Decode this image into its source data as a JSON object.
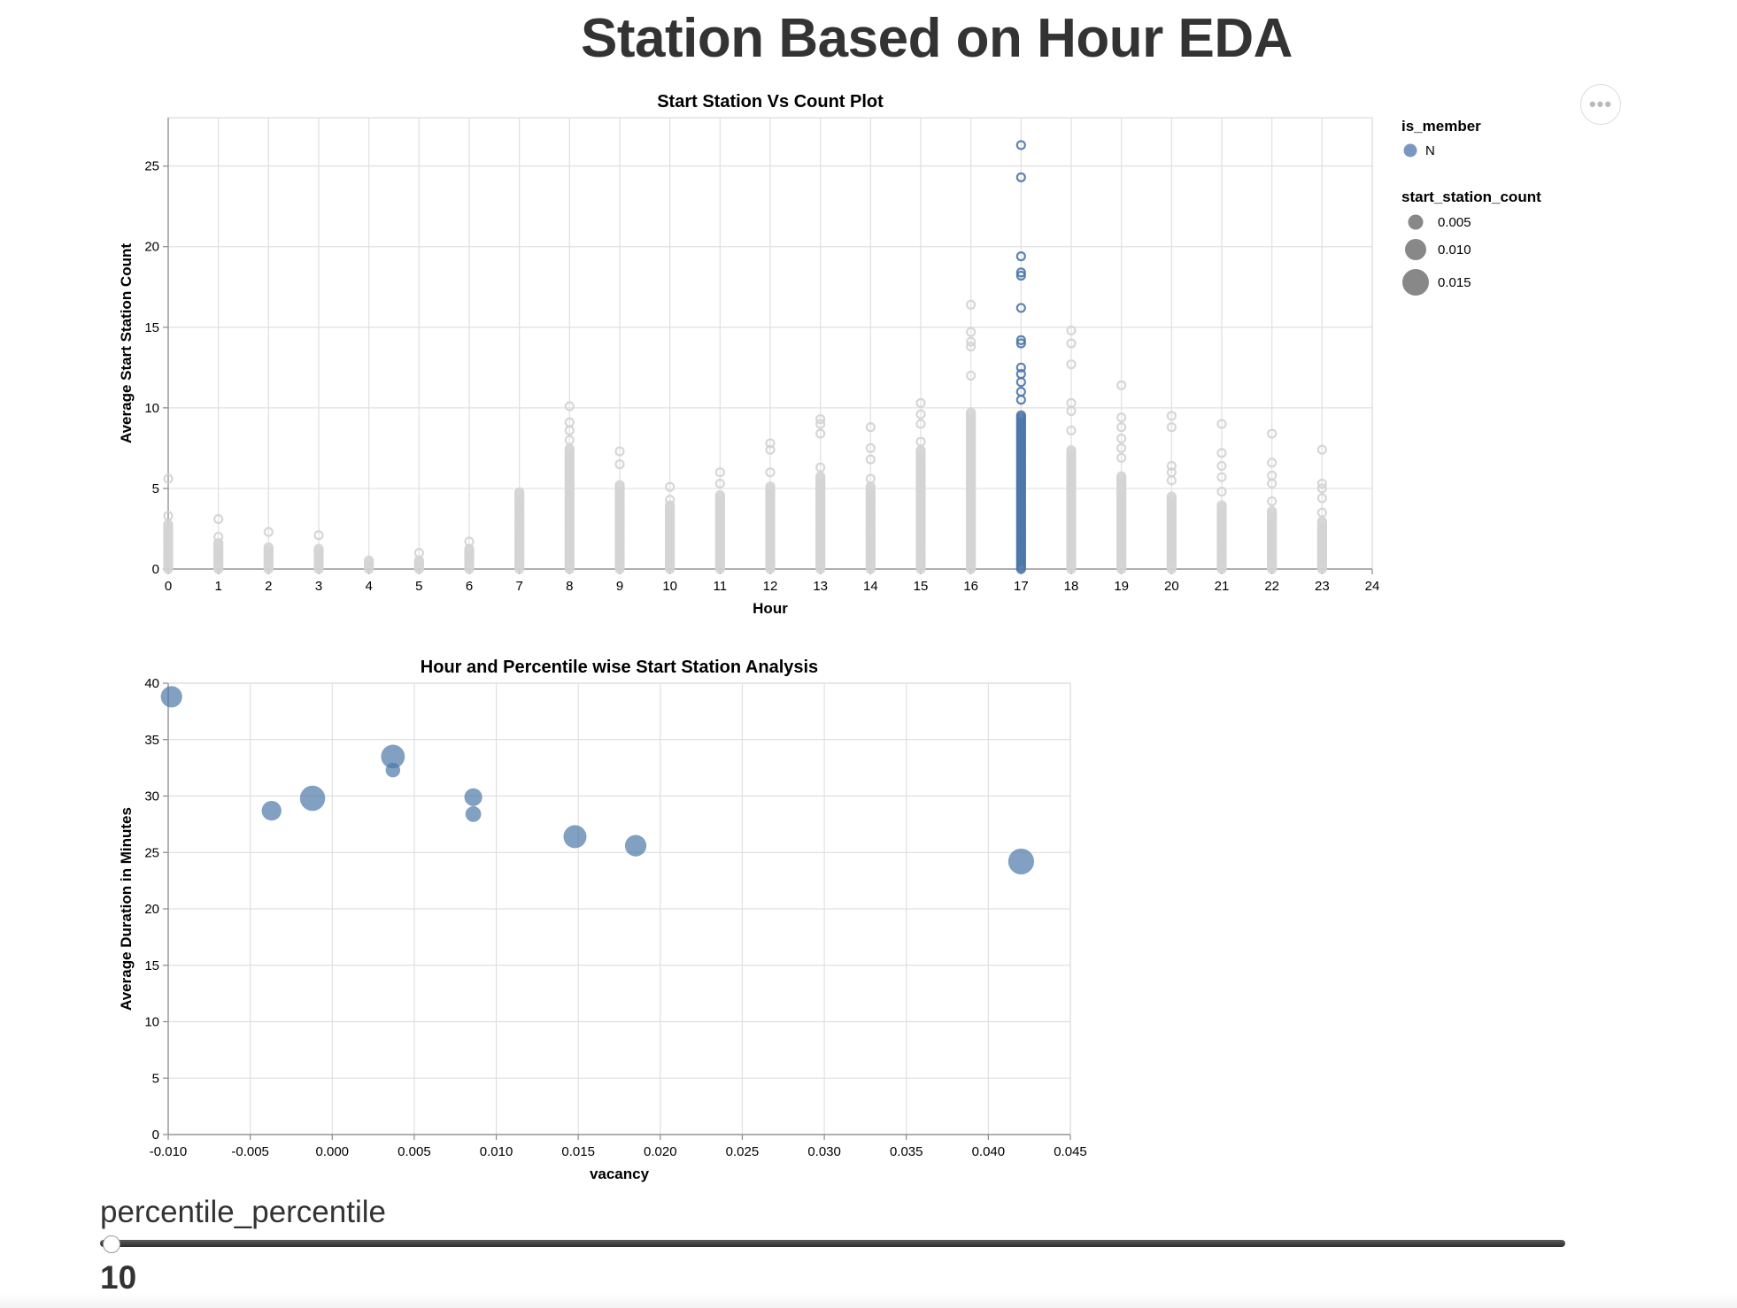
{
  "page": {
    "title": "Station Based on Hour EDA",
    "menu_icon": "ellipsis-icon",
    "menu_glyph": "•••"
  },
  "legend": {
    "color_title": "is_member",
    "color_entries": [
      {
        "label": "N",
        "color": "#7c97bf"
      }
    ],
    "size_title": "start_station_count",
    "size_entries": [
      {
        "label": "0.005",
        "value": 0.005
      },
      {
        "label": "0.010",
        "value": 0.01
      },
      {
        "label": "0.015",
        "value": 0.015
      }
    ]
  },
  "slider": {
    "name": "percentile_percentile",
    "value": "10",
    "position": 0
  },
  "chart_data": [
    {
      "type": "scatter",
      "title": "Start Station Vs Count Plot",
      "xlabel": "Hour",
      "ylabel": "Average Start Station Count",
      "xlim": [
        0,
        24
      ],
      "ylim": [
        0,
        28
      ],
      "x_ticks": [
        "0",
        "1",
        "2",
        "3",
        "4",
        "5",
        "6",
        "7",
        "8",
        "9",
        "10",
        "11",
        "12",
        "13",
        "14",
        "15",
        "16",
        "17",
        "18",
        "19",
        "20",
        "21",
        "22",
        "23",
        "24"
      ],
      "y_ticks": [
        "0",
        "5",
        "10",
        "15",
        "20",
        "25"
      ],
      "grid": true,
      "highlight_color": "#4c78a8",
      "muted_color": "#d3d3d3",
      "highlighted_hour": 17,
      "series": [
        {
          "hour": 0,
          "dense_max": 2.8,
          "outliers": [
            3.3,
            5.6
          ]
        },
        {
          "hour": 1,
          "dense_max": 1.7,
          "outliers": [
            2.0,
            3.1
          ]
        },
        {
          "hour": 2,
          "dense_max": 1.4,
          "outliers": [
            2.3
          ]
        },
        {
          "hour": 3,
          "dense_max": 1.3,
          "outliers": [
            2.1
          ]
        },
        {
          "hour": 4,
          "dense_max": 0.6,
          "outliers": []
        },
        {
          "hour": 5,
          "dense_max": 0.6,
          "outliers": [
            1.0
          ]
        },
        {
          "hour": 6,
          "dense_max": 1.3,
          "outliers": [
            1.7
          ]
        },
        {
          "hour": 7,
          "dense_max": 4.8,
          "outliers": []
        },
        {
          "hour": 8,
          "dense_max": 7.5,
          "outliers": [
            8.0,
            8.6,
            9.1,
            10.1
          ]
        },
        {
          "hour": 9,
          "dense_max": 5.3,
          "outliers": [
            6.5,
            7.3
          ]
        },
        {
          "hour": 10,
          "dense_max": 4.0,
          "outliers": [
            4.3,
            5.1
          ]
        },
        {
          "hour": 11,
          "dense_max": 4.6,
          "outliers": [
            5.3,
            6.0
          ]
        },
        {
          "hour": 12,
          "dense_max": 5.2,
          "outliers": [
            6.0,
            7.4,
            7.8
          ]
        },
        {
          "hour": 13,
          "dense_max": 5.8,
          "outliers": [
            6.3,
            8.4,
            9.0,
            9.3
          ]
        },
        {
          "hour": 14,
          "dense_max": 5.2,
          "outliers": [
            5.6,
            6.8,
            7.5,
            8.8
          ]
        },
        {
          "hour": 15,
          "dense_max": 7.4,
          "outliers": [
            7.9,
            9.0,
            9.6,
            10.3
          ]
        },
        {
          "hour": 16,
          "dense_max": 9.8,
          "outliers": [
            12.0,
            13.8,
            14.1,
            14.7,
            16.4
          ]
        },
        {
          "hour": 17,
          "dense_max": 9.6,
          "outliers": [
            10.5,
            11.0,
            11.6,
            12.1,
            12.5,
            14.0,
            14.2,
            16.2,
            18.2,
            18.4,
            19.4,
            24.3,
            26.3
          ]
        },
        {
          "hour": 18,
          "dense_max": 7.4,
          "outliers": [
            8.6,
            9.8,
            10.3,
            12.7,
            14.0,
            14.8
          ]
        },
        {
          "hour": 19,
          "dense_max": 5.8,
          "outliers": [
            6.9,
            7.5,
            8.1,
            8.8,
            9.4,
            11.4
          ]
        },
        {
          "hour": 20,
          "dense_max": 4.5,
          "outliers": [
            5.5,
            6.0,
            6.4,
            8.8,
            9.5
          ]
        },
        {
          "hour": 21,
          "dense_max": 4.0,
          "outliers": [
            4.8,
            5.7,
            6.4,
            7.2,
            9.0
          ]
        },
        {
          "hour": 22,
          "dense_max": 3.6,
          "outliers": [
            4.2,
            5.3,
            5.8,
            6.6,
            8.4
          ]
        },
        {
          "hour": 23,
          "dense_max": 3.0,
          "outliers": [
            3.5,
            4.4,
            5.0,
            5.3,
            7.4
          ]
        }
      ]
    },
    {
      "type": "scatter",
      "title": "Hour and Percentile wise Start Station Analysis",
      "xlabel": "vacancy",
      "ylabel": "Average Duration in Minutes",
      "xlim": [
        -0.01,
        0.045
      ],
      "ylim": [
        0,
        40
      ],
      "x_ticks": [
        "-0.010",
        "-0.005",
        "0.000",
        "0.005",
        "0.010",
        "0.015",
        "0.020",
        "0.025",
        "0.030",
        "0.035",
        "0.040",
        "0.045"
      ],
      "y_ticks": [
        "0",
        "5",
        "10",
        "15",
        "20",
        "25",
        "30",
        "35",
        "40"
      ],
      "grid": true,
      "color": "#4c78a8",
      "points": [
        {
          "x": -0.0098,
          "y": 38.8,
          "size": 0.013
        },
        {
          "x": -0.0037,
          "y": 28.7,
          "size": 0.011
        },
        {
          "x": -0.0012,
          "y": 29.8,
          "size": 0.018
        },
        {
          "x": 0.0037,
          "y": 33.5,
          "size": 0.016
        },
        {
          "x": 0.0037,
          "y": 32.3,
          "size": 0.006
        },
        {
          "x": 0.0086,
          "y": 29.9,
          "size": 0.009
        },
        {
          "x": 0.0086,
          "y": 28.4,
          "size": 0.007
        },
        {
          "x": 0.0148,
          "y": 26.4,
          "size": 0.015
        },
        {
          "x": 0.0185,
          "y": 25.6,
          "size": 0.013
        },
        {
          "x": 0.042,
          "y": 24.2,
          "size": 0.019
        }
      ]
    }
  ]
}
